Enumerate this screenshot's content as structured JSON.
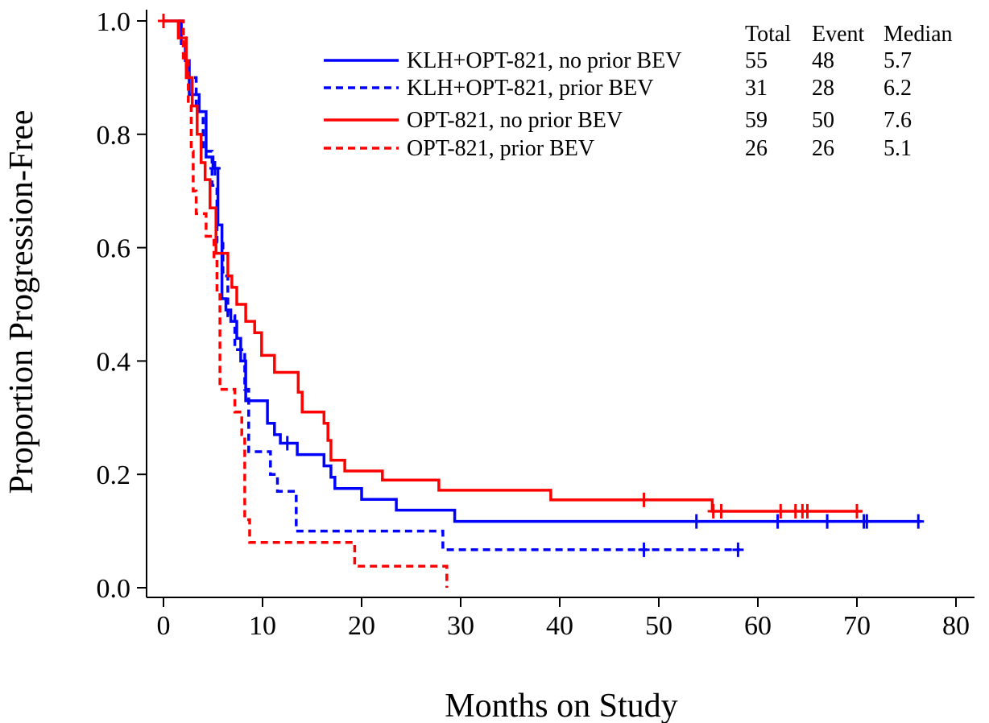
{
  "chart_data": {
    "type": "line",
    "xlabel": "Months on Study",
    "ylabel": "Proportion Progression-Free",
    "xlim": [
      -1.5,
      80
    ],
    "ylim": [
      -0.02,
      1.02
    ],
    "x_ticks": [
      0,
      10,
      20,
      30,
      40,
      50,
      60,
      70,
      80
    ],
    "y_ticks": [
      0.0,
      0.2,
      0.4,
      0.6,
      0.8,
      1.0
    ],
    "y_tick_labels": [
      "0.0",
      "0.2",
      "0.4",
      "0.6",
      "0.8",
      "1.0"
    ],
    "grid": false,
    "legend_position": "top-right",
    "legend_columns": [
      "Total",
      "Event",
      "Median"
    ],
    "series": [
      {
        "name": "KLH+OPT-821, no prior BEV",
        "color": "#0000ff",
        "style": "solid",
        "total": "55",
        "event": "48",
        "median": "5.7",
        "steps": [
          [
            0,
            1.0
          ],
          [
            1.8,
            0.96
          ],
          [
            2.2,
            0.93
          ],
          [
            2.6,
            0.87
          ],
          [
            3.6,
            0.84
          ],
          [
            4.3,
            0.76
          ],
          [
            5.0,
            0.74
          ],
          [
            5.5,
            0.64
          ],
          [
            5.9,
            0.51
          ],
          [
            6.3,
            0.49
          ],
          [
            6.8,
            0.47
          ],
          [
            7.4,
            0.44
          ],
          [
            7.8,
            0.4
          ],
          [
            8.3,
            0.33
          ],
          [
            10.5,
            0.29
          ],
          [
            11.2,
            0.27
          ],
          [
            11.8,
            0.255
          ],
          [
            13.5,
            0.235
          ],
          [
            16.2,
            0.215
          ],
          [
            16.9,
            0.195
          ],
          [
            17.3,
            0.175
          ],
          [
            20.0,
            0.156
          ],
          [
            23.5,
            0.137
          ],
          [
            29.4,
            0.117
          ],
          [
            76.5,
            0.117
          ]
        ],
        "censor_x": [
          5.2,
          12.5,
          53.8,
          62.0,
          67.0,
          70.7,
          71.0,
          76.2
        ]
      },
      {
        "name": "KLH+OPT-821, prior BEV",
        "color": "#0000ff",
        "style": "dashed",
        "total": "31",
        "event": "28",
        "median": "6.2",
        "steps": [
          [
            1.5,
            1.0
          ],
          [
            2.0,
            0.97
          ],
          [
            2.3,
            0.9
          ],
          [
            3.3,
            0.84
          ],
          [
            4.0,
            0.77
          ],
          [
            4.9,
            0.71
          ],
          [
            5.4,
            0.61
          ],
          [
            6.0,
            0.55
          ],
          [
            6.5,
            0.48
          ],
          [
            7.2,
            0.42
          ],
          [
            8.2,
            0.35
          ],
          [
            8.6,
            0.24
          ],
          [
            10.8,
            0.2
          ],
          [
            11.5,
            0.17
          ],
          [
            13.4,
            0.1
          ],
          [
            28.2,
            0.067
          ],
          [
            58.2,
            0.067
          ]
        ],
        "censor_x": [
          48.5,
          58.0
        ]
      },
      {
        "name": "OPT-821, no prior BEV",
        "color": "#ff0000",
        "style": "solid",
        "total": "59",
        "event": "50",
        "median": "7.6",
        "steps": [
          [
            0,
            1.0
          ],
          [
            1.5,
            0.97
          ],
          [
            2.3,
            0.9
          ],
          [
            2.9,
            0.85
          ],
          [
            3.4,
            0.8
          ],
          [
            3.8,
            0.75
          ],
          [
            4.2,
            0.72
          ],
          [
            4.7,
            0.67
          ],
          [
            5.3,
            0.59
          ],
          [
            6.5,
            0.55
          ],
          [
            6.9,
            0.53
          ],
          [
            7.4,
            0.5
          ],
          [
            8.3,
            0.47
          ],
          [
            9.2,
            0.45
          ],
          [
            9.9,
            0.41
          ],
          [
            11.2,
            0.38
          ],
          [
            13.6,
            0.345
          ],
          [
            14.0,
            0.31
          ],
          [
            16.2,
            0.29
          ],
          [
            16.6,
            0.26
          ],
          [
            16.9,
            0.225
          ],
          [
            18.3,
            0.206
          ],
          [
            22.1,
            0.19
          ],
          [
            27.8,
            0.172
          ],
          [
            39.1,
            0.155
          ],
          [
            55.4,
            0.135
          ],
          [
            70.5,
            0.135
          ]
        ],
        "censor_x": [
          0,
          48.5,
          55.5,
          56.3,
          62.3,
          63.8,
          64.5,
          65.0,
          70.0
        ]
      },
      {
        "name": "OPT-821, prior BEV",
        "color": "#ff0000",
        "style": "dashed",
        "total": "26",
        "event": "26",
        "median": "5.1",
        "steps": [
          [
            1.5,
            1.0
          ],
          [
            2.0,
            0.93
          ],
          [
            2.5,
            0.85
          ],
          [
            2.8,
            0.77
          ],
          [
            3.0,
            0.7
          ],
          [
            3.3,
            0.66
          ],
          [
            4.3,
            0.62
          ],
          [
            5.1,
            0.58
          ],
          [
            5.4,
            0.52
          ],
          [
            5.7,
            0.35
          ],
          [
            7.2,
            0.31
          ],
          [
            7.9,
            0.27
          ],
          [
            8.2,
            0.12
          ],
          [
            8.7,
            0.08
          ],
          [
            19.3,
            0.038
          ],
          [
            28.6,
            0.038
          ],
          [
            28.6,
            0.0
          ]
        ],
        "censor_x": []
      }
    ]
  }
}
